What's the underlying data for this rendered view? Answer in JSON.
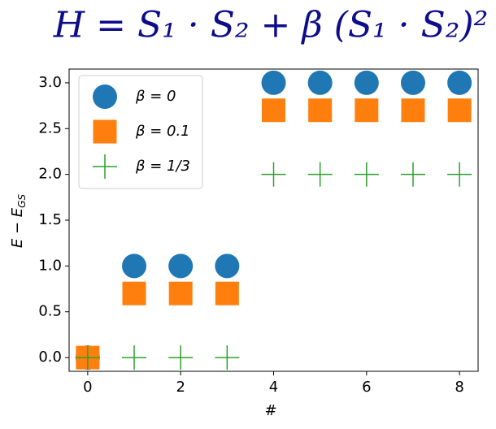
{
  "chart_data": {
    "type": "scatter",
    "title": "H = S₁ · S₂ + β (S₁ · S₂)²",
    "x_label": "#",
    "y_label": {
      "main": "E − E",
      "sub": "GS"
    },
    "x": [
      0,
      1,
      2,
      3,
      4,
      5,
      6,
      7,
      8
    ],
    "series": [
      {
        "name": "β = 0",
        "color": "#1f77b4",
        "marker": "circle",
        "values": [
          0,
          1,
          1,
          1,
          3,
          3,
          3,
          3,
          3
        ]
      },
      {
        "name": "β = 0.1",
        "color": "#ff7f0e",
        "marker": "square",
        "values": [
          0,
          0.7,
          0.7,
          0.7,
          2.7,
          2.7,
          2.7,
          2.7,
          2.7
        ]
      },
      {
        "name": "β = 1/3",
        "color": "#2ca02c",
        "marker": "plus",
        "values": [
          0,
          0,
          0,
          0,
          2,
          2,
          2,
          2,
          2
        ]
      }
    ],
    "xlim": [
      -0.4,
      8.4
    ],
    "xticks": [
      0,
      2,
      4,
      6,
      8
    ],
    "ylim": [
      -0.15,
      3.15
    ],
    "yticks": [
      {
        "value": 0,
        "label": "0.0"
      },
      {
        "value": 0.5,
        "label": "0.5"
      },
      {
        "value": 1,
        "label": "1.0"
      },
      {
        "value": 1.5,
        "label": "1.5"
      },
      {
        "value": 2,
        "label": "2.0"
      },
      {
        "value": 2.5,
        "label": "2.5"
      },
      {
        "value": 3,
        "label": "3.0"
      }
    ],
    "grid": false,
    "legend": "upper-left"
  }
}
